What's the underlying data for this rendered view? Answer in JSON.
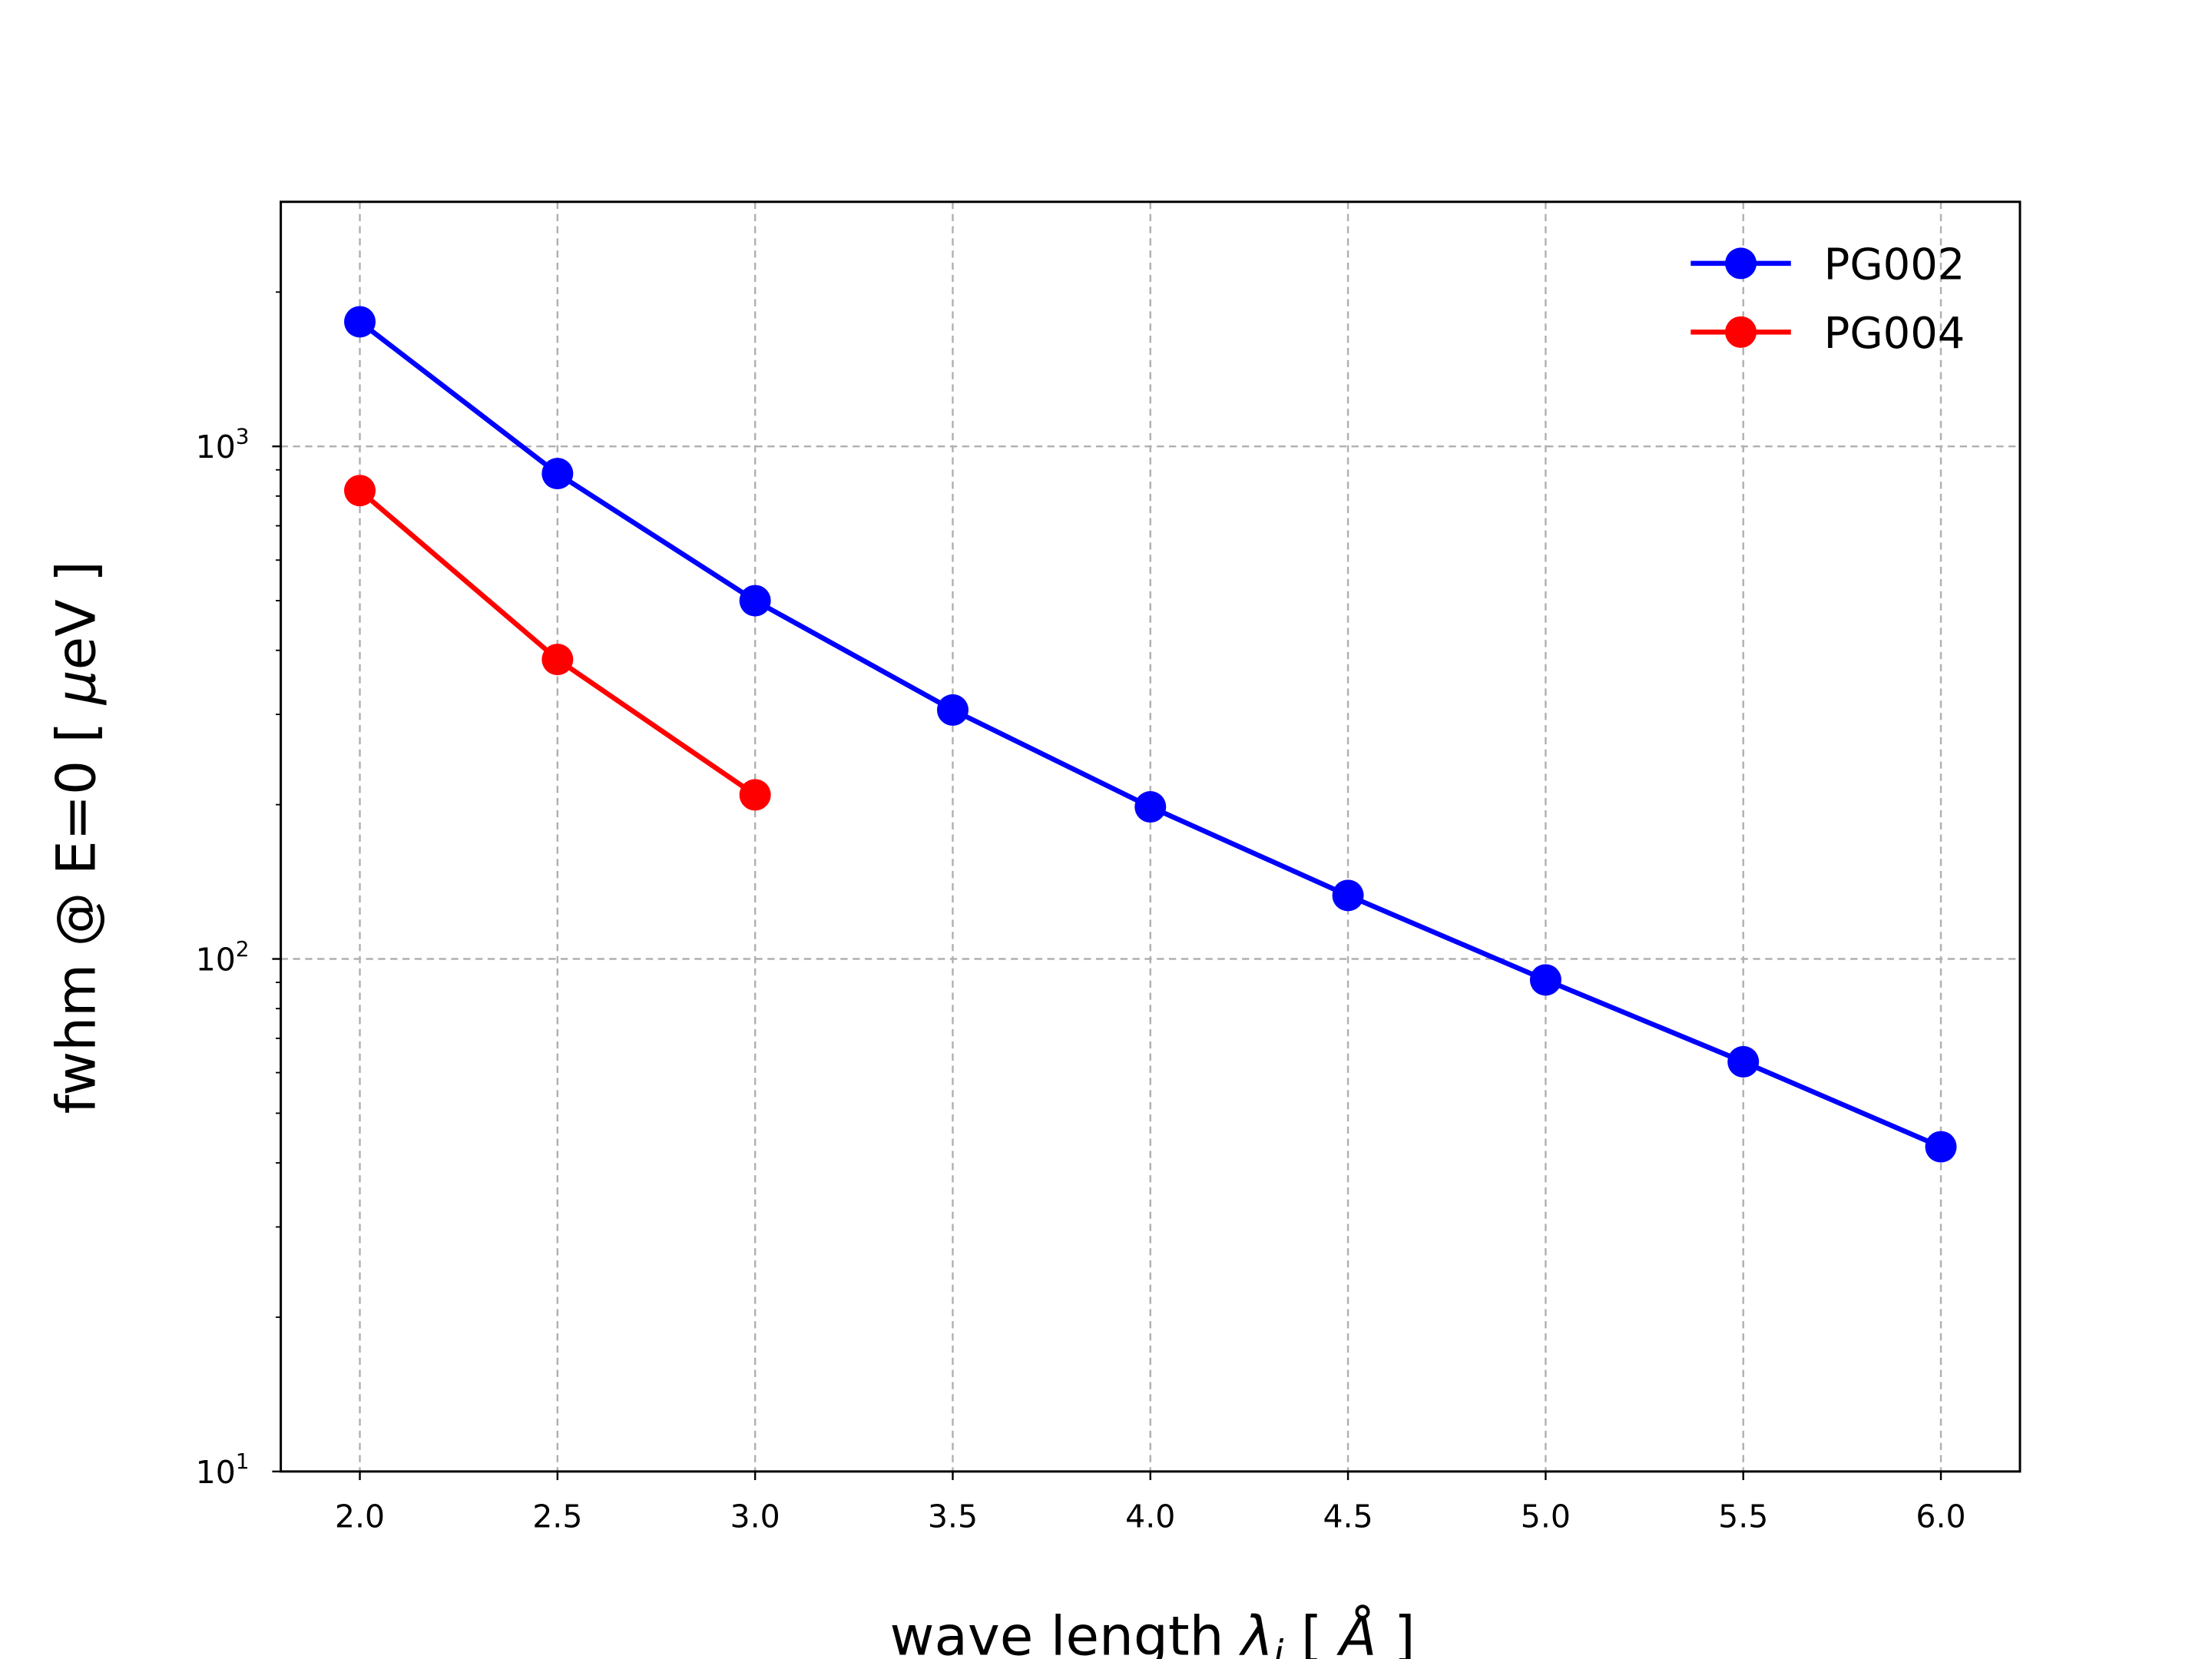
{
  "chart_data": {
    "type": "line",
    "title": "",
    "xlabel": "wave length λ_i  [ Å ]",
    "xlabel_parts": {
      "pre": "wave length ",
      "sym": "λ",
      "sub": "i",
      "post": "  [ ",
      "unit": "Å",
      "end": " ]"
    },
    "ylabel": "fwhm @ E=0 [ μeV ]",
    "ylabel_parts": {
      "pre": "fwhm @ E=0 [ ",
      "mu": "μ",
      "post": "eV ]"
    },
    "xlim": [
      1.8,
      6.2
    ],
    "ylim": [
      10,
      3000
    ],
    "yscale": "log",
    "grid": true,
    "legend_position": "top-right",
    "x_ticks": [
      "2.0",
      "2.5",
      "3.0",
      "3.5",
      "4.0",
      "4.5",
      "5.0",
      "5.5",
      "6.0"
    ],
    "y_ticks": [
      {
        "value": 10,
        "base": "10",
        "exp": "1"
      },
      {
        "value": 100,
        "base": "10",
        "exp": "2"
      },
      {
        "value": 1000,
        "base": "10",
        "exp": "3"
      }
    ],
    "series": [
      {
        "name": "PG002",
        "color": "#0000ff",
        "marker": "circle",
        "x": [
          2.0,
          2.5,
          3.0,
          3.5,
          4.0,
          4.5,
          5.0,
          5.5,
          6.0
        ],
        "y": [
          1750,
          885,
          500,
          306,
          198,
          133,
          91,
          63,
          43
        ]
      },
      {
        "name": "PG004",
        "color": "#ff0000",
        "marker": "circle",
        "x": [
          2.0,
          2.5,
          3.0
        ],
        "y": [
          820,
          384,
          209
        ]
      }
    ]
  }
}
